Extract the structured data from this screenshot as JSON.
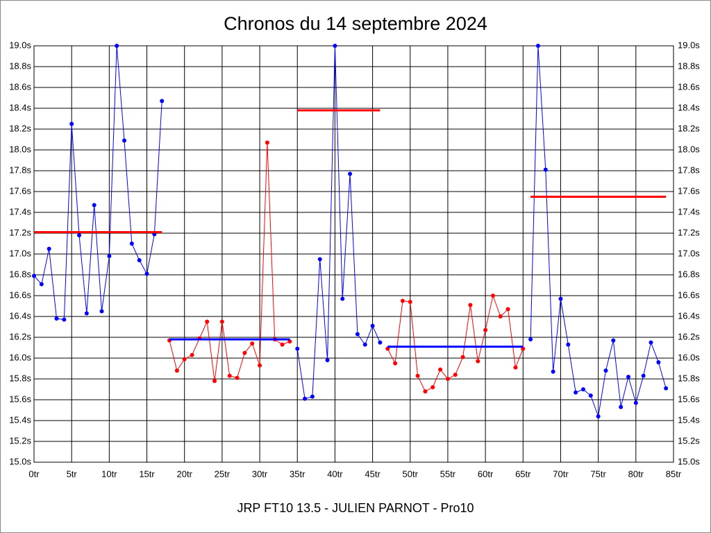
{
  "chart_data": {
    "type": "line",
    "title": "Chronos du 14 septembre 2024",
    "x_label": "JRP FT10 13.5 - JULIEN PARNOT - Pro10",
    "grid": true,
    "xlim": [
      0,
      85
    ],
    "ylim": [
      15.0,
      19.0
    ],
    "xticks": [
      {
        "value": 0,
        "label": "0tr"
      },
      {
        "value": 5,
        "label": "5tr"
      },
      {
        "value": 10,
        "label": "10tr"
      },
      {
        "value": 15,
        "label": "15tr"
      },
      {
        "value": 20,
        "label": "20tr"
      },
      {
        "value": 25,
        "label": "25tr"
      },
      {
        "value": 30,
        "label": "30tr"
      },
      {
        "value": 35,
        "label": "35tr"
      },
      {
        "value": 40,
        "label": "40tr"
      },
      {
        "value": 45,
        "label": "45tr"
      },
      {
        "value": 50,
        "label": "50tr"
      },
      {
        "value": 55,
        "label": "55tr"
      },
      {
        "value": 60,
        "label": "60tr"
      },
      {
        "value": 65,
        "label": "65tr"
      },
      {
        "value": 70,
        "label": "70tr"
      },
      {
        "value": 75,
        "label": "75tr"
      },
      {
        "value": 80,
        "label": "80tr"
      },
      {
        "value": 85,
        "label": "85tr"
      }
    ],
    "yticks": [
      {
        "value": 15.0,
        "label": "15.0s"
      },
      {
        "value": 15.2,
        "label": "15.2s"
      },
      {
        "value": 15.4,
        "label": "15.4s"
      },
      {
        "value": 15.6,
        "label": "15.6s"
      },
      {
        "value": 15.8,
        "label": "15.8s"
      },
      {
        "value": 16.0,
        "label": "16.0s"
      },
      {
        "value": 16.2,
        "label": "16.2s"
      },
      {
        "value": 16.4,
        "label": "16.4s"
      },
      {
        "value": 16.6,
        "label": "16.6s"
      },
      {
        "value": 16.8,
        "label": "16.8s"
      },
      {
        "value": 17.0,
        "label": "17.0s"
      },
      {
        "value": 17.2,
        "label": "17.2s"
      },
      {
        "value": 17.4,
        "label": "17.4s"
      },
      {
        "value": 17.6,
        "label": "17.6s"
      },
      {
        "value": 17.8,
        "label": "17.8s"
      },
      {
        "value": 18.0,
        "label": "18.0s"
      },
      {
        "value": 18.2,
        "label": "18.2s"
      },
      {
        "value": 18.4,
        "label": "18.4s"
      },
      {
        "value": 18.6,
        "label": "18.6s"
      },
      {
        "value": 18.8,
        "label": "18.8s"
      },
      {
        "value": 19.0,
        "label": "19.0s"
      }
    ],
    "series": [
      {
        "color": "#0000ff",
        "x": [
          0,
          1,
          2,
          3,
          4,
          5,
          6,
          7,
          8,
          9,
          10,
          11,
          12,
          13,
          14,
          15,
          16,
          17
        ],
        "values": [
          16.79,
          16.71,
          17.05,
          16.38,
          16.37,
          18.25,
          17.18,
          16.43,
          17.47,
          16.45,
          16.98,
          19.0,
          18.09,
          17.1,
          16.94,
          16.81,
          17.19,
          18.47
        ]
      },
      {
        "color": "#ff0000",
        "x": [
          18,
          19,
          20,
          21,
          22,
          23,
          24,
          25,
          26,
          27,
          28,
          29,
          30,
          31,
          32,
          33,
          34
        ],
        "values": [
          16.17,
          15.88,
          15.99,
          16.03,
          16.19,
          16.35,
          15.78,
          16.35,
          15.83,
          15.81,
          16.05,
          16.14,
          15.93,
          18.07,
          16.18,
          16.13,
          16.16
        ]
      },
      {
        "color": "#0000ff",
        "x": [
          35,
          36,
          37,
          38,
          39,
          40,
          41,
          42,
          43,
          44,
          45,
          46
        ],
        "values": [
          16.09,
          15.61,
          15.63,
          16.95,
          15.98,
          19.0,
          16.57,
          17.77,
          16.23,
          16.13,
          16.31,
          16.15
        ]
      },
      {
        "color": "#ff0000",
        "x": [
          47,
          48,
          49,
          50,
          51,
          52,
          53,
          54,
          55,
          56,
          57,
          58,
          59,
          60,
          61,
          62,
          63,
          64,
          65
        ],
        "values": [
          16.09,
          15.95,
          16.55,
          16.54,
          15.83,
          15.68,
          15.72,
          15.89,
          15.8,
          15.84,
          16.01,
          16.51,
          15.97,
          16.27,
          16.6,
          16.4,
          16.47,
          15.91,
          16.09
        ]
      },
      {
        "color": "#0000ff",
        "x": [
          66,
          67,
          68,
          69,
          70,
          71,
          72,
          73,
          74,
          75,
          76,
          77,
          78,
          79,
          80,
          81,
          82,
          83,
          84
        ],
        "values": [
          16.18,
          19.0,
          17.81,
          15.87,
          16.57,
          16.13,
          15.67,
          15.7,
          15.64,
          15.44,
          15.88,
          16.17,
          15.53,
          15.82,
          15.57,
          15.83,
          16.15,
          15.96,
          15.71
        ]
      }
    ],
    "average_lines": [
      {
        "color": "#ff0000",
        "x": [
          0,
          17
        ],
        "value": 17.21
      },
      {
        "color": "#0000ff",
        "x": [
          18,
          34
        ],
        "value": 16.18
      },
      {
        "color": "#ff0000",
        "x": [
          35,
          46
        ],
        "value": 18.38
      },
      {
        "color": "#0000ff",
        "x": [
          47,
          65
        ],
        "value": 16.11
      },
      {
        "color": "#ff0000",
        "x": [
          66,
          84
        ],
        "value": 17.55
      }
    ]
  }
}
